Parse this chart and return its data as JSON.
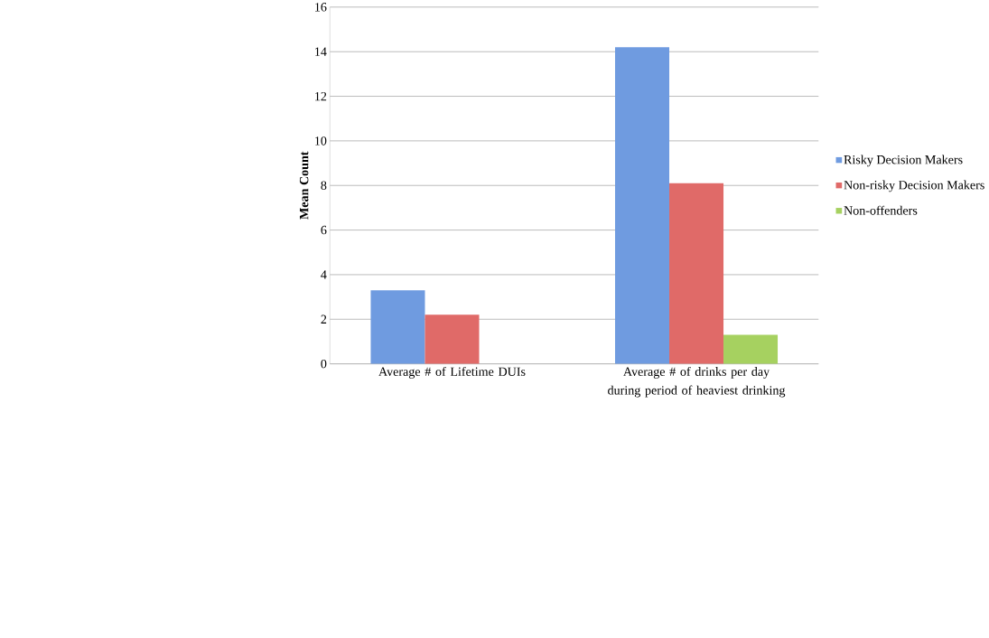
{
  "chart_data": {
    "type": "bar",
    "ylabel": "Mean Count",
    "categories": [
      "Average # of Lifetime DUIs",
      "Average # of drinks per day during period of heaviest drinking"
    ],
    "series": [
      {
        "name": "Risky Decision Makers",
        "color": "#6f9be0",
        "values": [
          3.3,
          14.2
        ]
      },
      {
        "name": "Non-risky Decision Makers",
        "color": "#e06a68",
        "values": [
          2.2,
          8.1
        ]
      },
      {
        "name": "Non-offenders",
        "color": "#a6d160",
        "values": [
          null,
          1.3
        ]
      }
    ],
    "ylim": [
      0,
      16
    ],
    "yticks": [
      0,
      2,
      4,
      6,
      8,
      10,
      12,
      14,
      16
    ],
    "grid": "y",
    "legend": "right"
  }
}
